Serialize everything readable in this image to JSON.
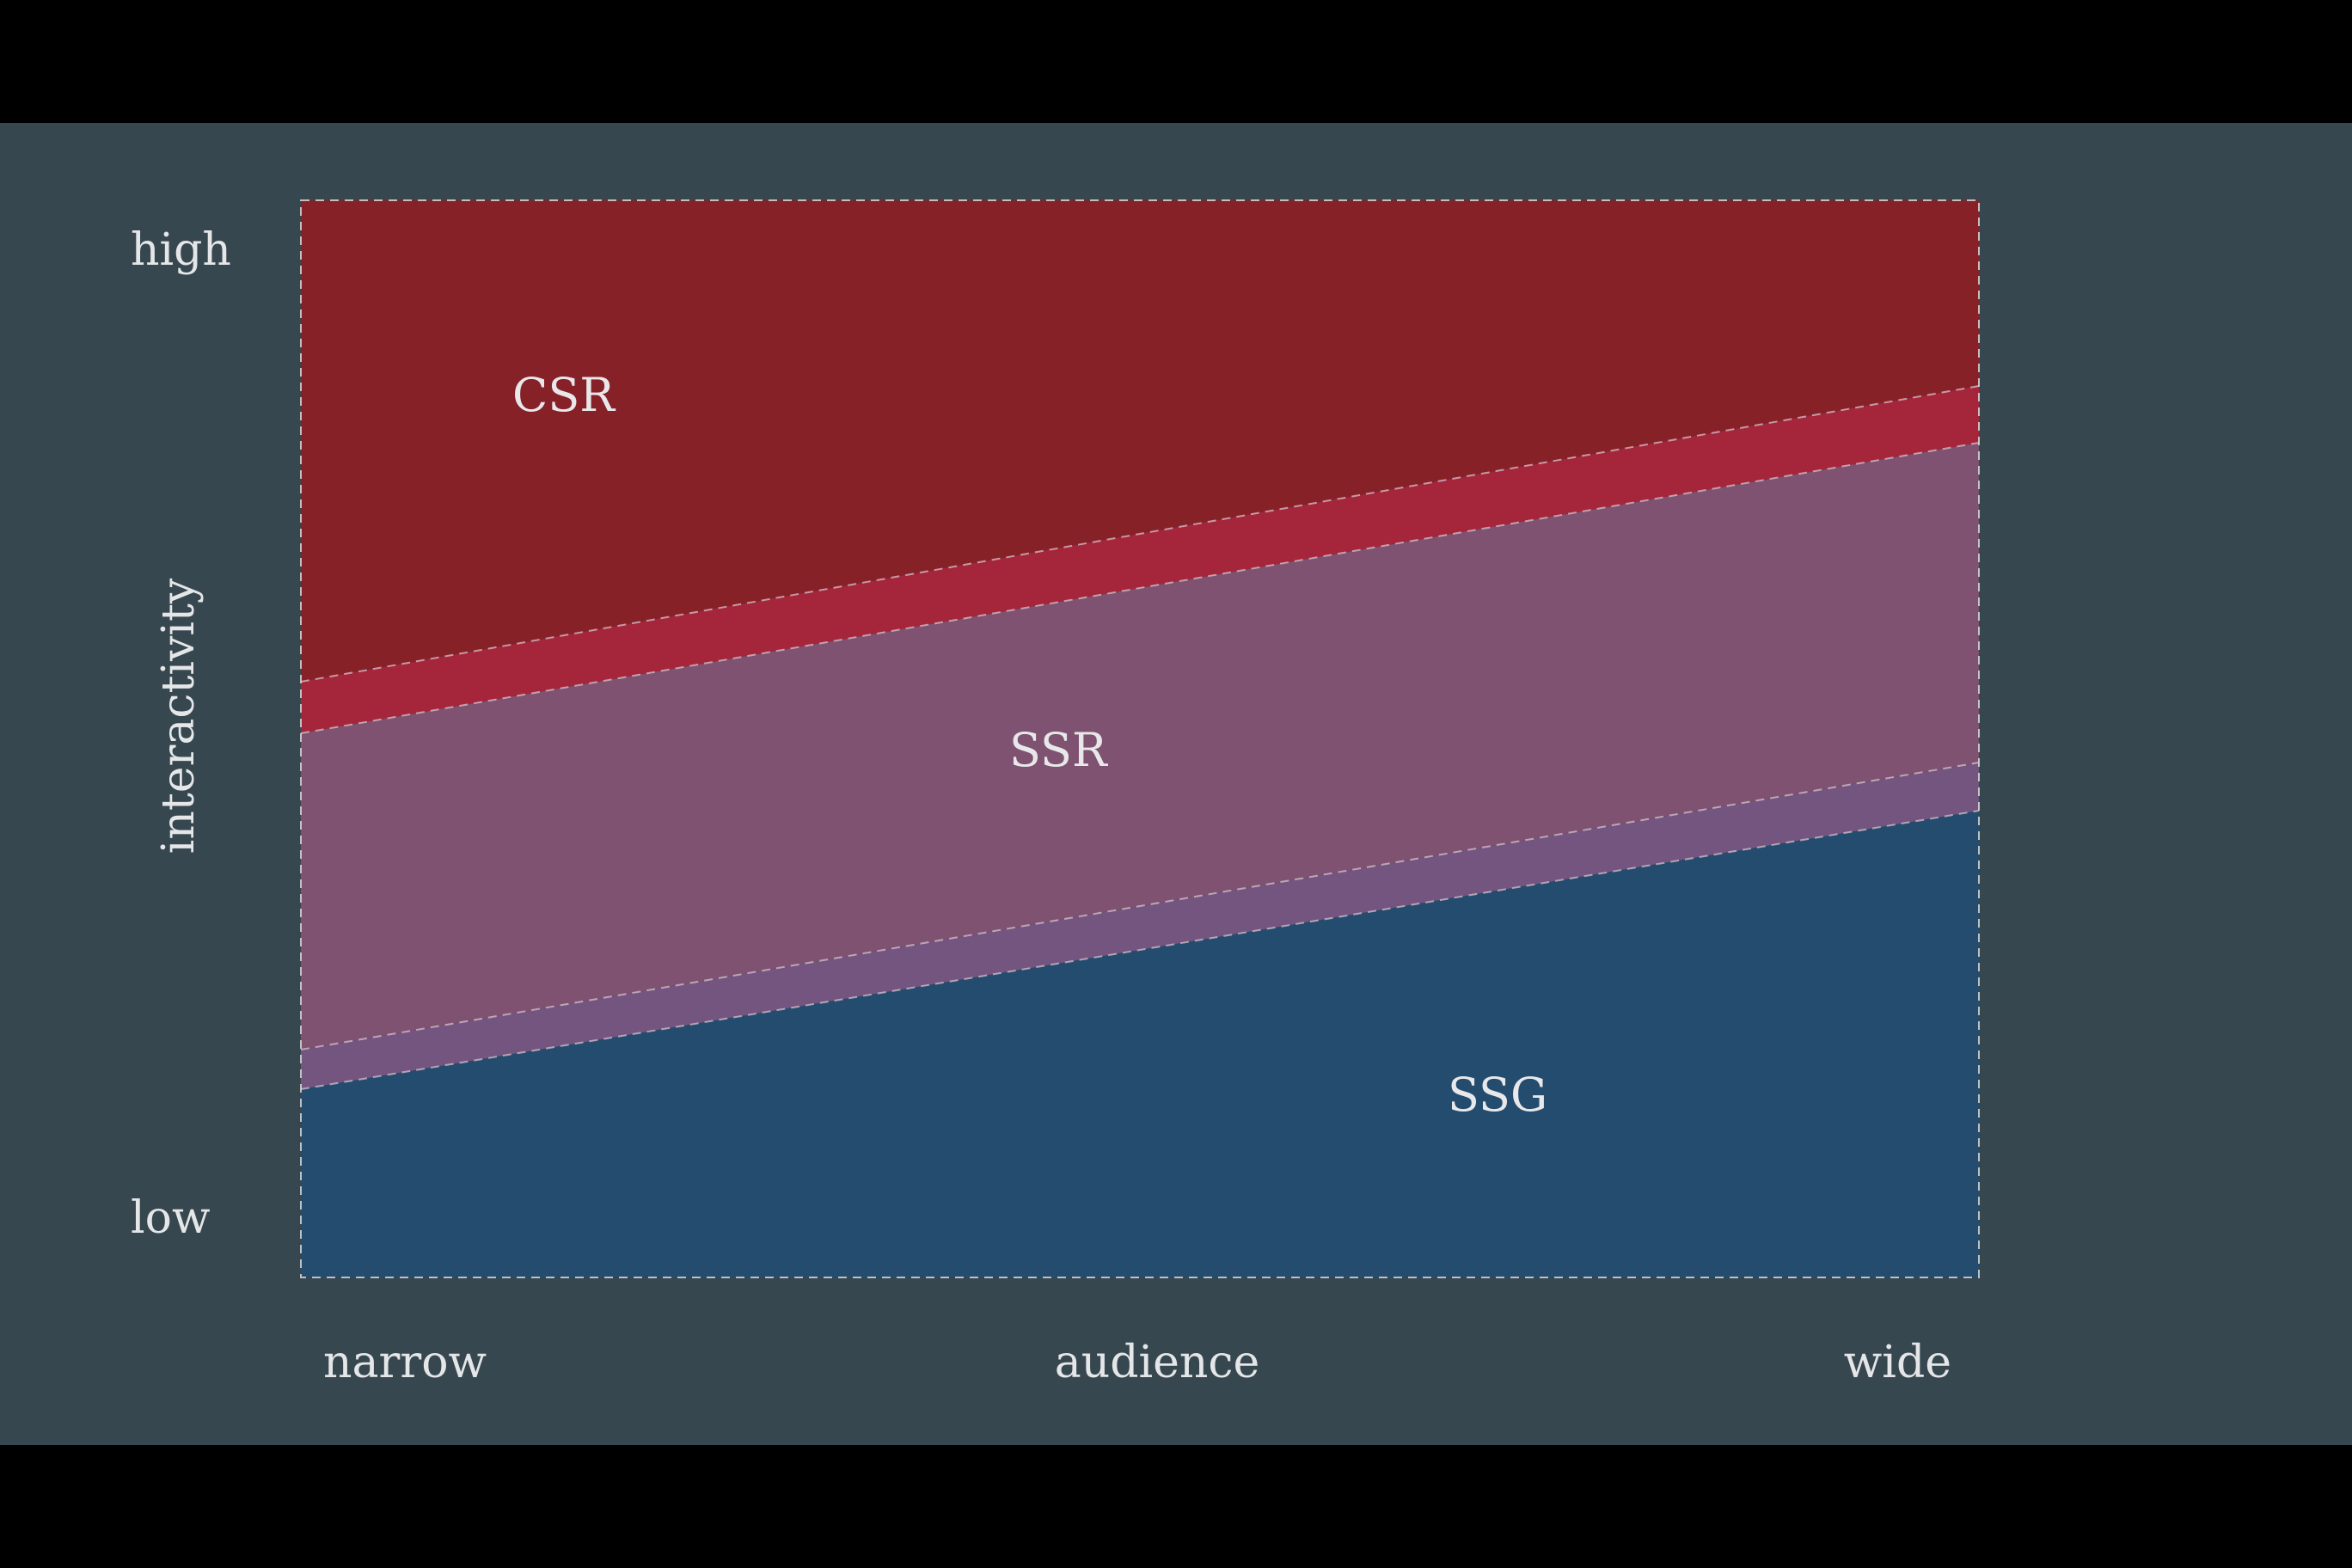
{
  "diagram": {
    "y_axis": {
      "title": "interactivity",
      "high_label": "high",
      "low_label": "low"
    },
    "x_axis": {
      "title": "audience",
      "left_label": "narrow",
      "right_label": "wide"
    },
    "regions": [
      {
        "name": "CSR",
        "label": "CSR",
        "color": "#872128"
      },
      {
        "name": "CSR/SSR overlap",
        "label": "",
        "color": "#a5253a"
      },
      {
        "name": "SSR",
        "label": "SSR",
        "color": "#7e5270"
      },
      {
        "name": "SSR/SSG overlap",
        "label": "",
        "color": "#735580"
      },
      {
        "name": "SSG",
        "label": "SSG",
        "color": "#244c6e"
      }
    ],
    "background_color": "#37474f",
    "boundary_line_color": "#d8b8c4"
  }
}
